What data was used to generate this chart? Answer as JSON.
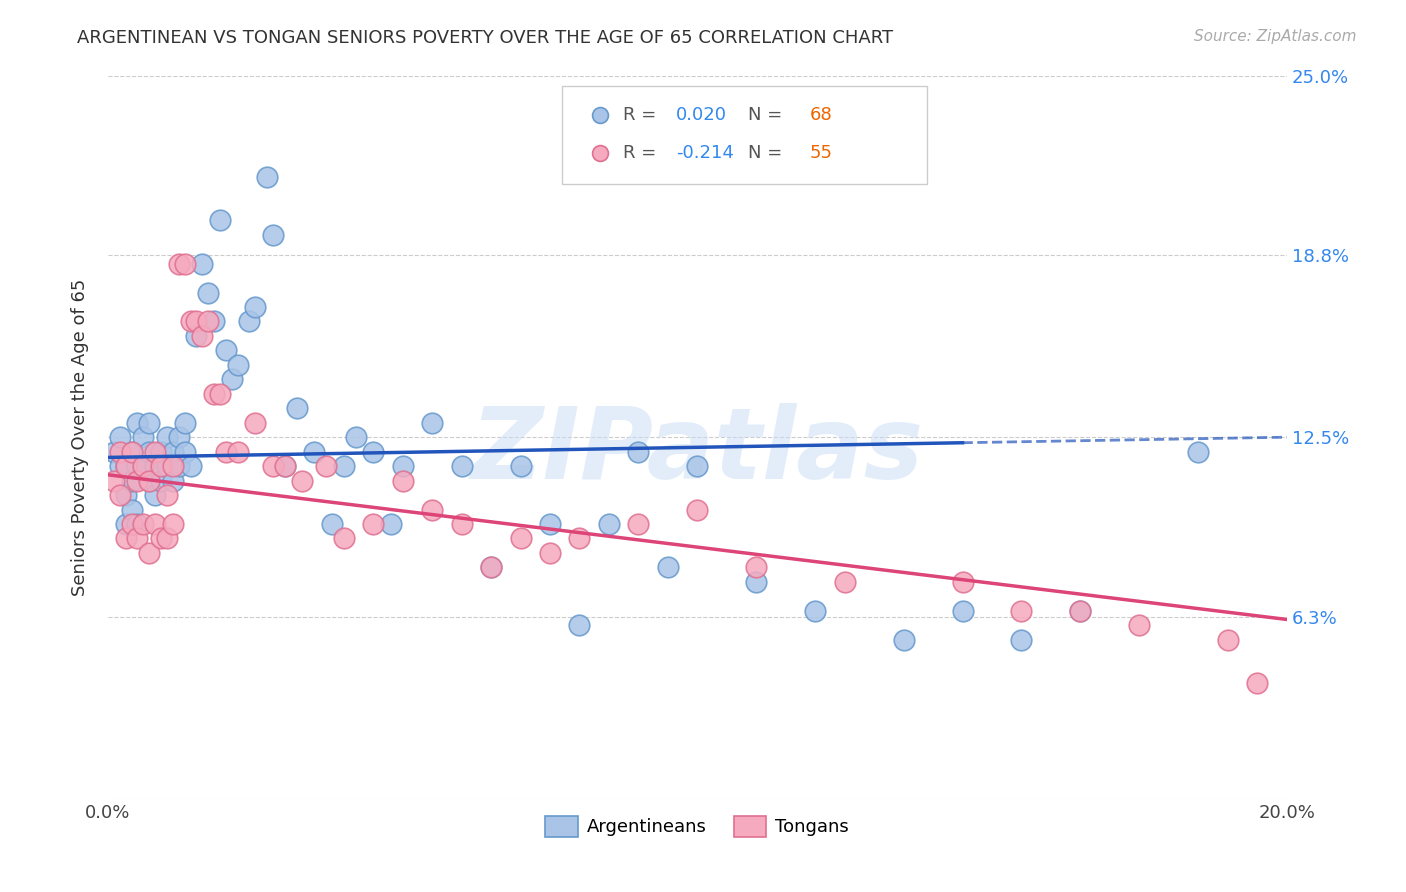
{
  "title": "ARGENTINEAN VS TONGAN SENIORS POVERTY OVER THE AGE OF 65 CORRELATION CHART",
  "source": "Source: ZipAtlas.com",
  "ylabel": "Seniors Poverty Over the Age of 65",
  "x_min": 0.0,
  "x_max": 0.2,
  "y_min": 0.0,
  "y_max": 0.25,
  "x_ticks": [
    0.0,
    0.05,
    0.1,
    0.15,
    0.2
  ],
  "x_tick_labels": [
    "0.0%",
    "",
    "",
    "",
    "20.0%"
  ],
  "y_ticks": [
    0.0,
    0.063,
    0.125,
    0.188,
    0.25
  ],
  "y_tick_labels_right": [
    "",
    "6.3%",
    "12.5%",
    "18.8%",
    "25.0%"
  ],
  "argentinean_color": "#aac4e8",
  "tongan_color": "#f5aabf",
  "argentinean_edge": "#6699cc",
  "tongan_edge": "#e07090",
  "blue_line_color": "#2255bb",
  "pink_line_color": "#dd4477",
  "watermark": "ZIPatlas",
  "argentinean_x": [
    0.001,
    0.002,
    0.002,
    0.003,
    0.003,
    0.003,
    0.004,
    0.004,
    0.004,
    0.005,
    0.005,
    0.005,
    0.006,
    0.006,
    0.007,
    0.007,
    0.007,
    0.008,
    0.008,
    0.009,
    0.009,
    0.01,
    0.01,
    0.011,
    0.011,
    0.012,
    0.012,
    0.013,
    0.013,
    0.014,
    0.015,
    0.016,
    0.017,
    0.018,
    0.019,
    0.02,
    0.021,
    0.022,
    0.024,
    0.025,
    0.027,
    0.028,
    0.03,
    0.032,
    0.035,
    0.038,
    0.04,
    0.042,
    0.045,
    0.048,
    0.05,
    0.055,
    0.06,
    0.065,
    0.07,
    0.075,
    0.08,
    0.085,
    0.09,
    0.095,
    0.1,
    0.11,
    0.12,
    0.135,
    0.145,
    0.155,
    0.165,
    0.185
  ],
  "argentinean_y": [
    0.12,
    0.115,
    0.125,
    0.115,
    0.105,
    0.095,
    0.12,
    0.11,
    0.1,
    0.13,
    0.115,
    0.095,
    0.125,
    0.115,
    0.12,
    0.13,
    0.11,
    0.115,
    0.105,
    0.12,
    0.11,
    0.115,
    0.125,
    0.12,
    0.11,
    0.125,
    0.115,
    0.13,
    0.12,
    0.115,
    0.16,
    0.185,
    0.175,
    0.165,
    0.2,
    0.155,
    0.145,
    0.15,
    0.165,
    0.17,
    0.215,
    0.195,
    0.115,
    0.135,
    0.12,
    0.095,
    0.115,
    0.125,
    0.12,
    0.095,
    0.115,
    0.13,
    0.115,
    0.08,
    0.115,
    0.095,
    0.06,
    0.095,
    0.12,
    0.08,
    0.115,
    0.075,
    0.065,
    0.055,
    0.065,
    0.055,
    0.065,
    0.12
  ],
  "tongan_x": [
    0.001,
    0.002,
    0.002,
    0.003,
    0.003,
    0.004,
    0.004,
    0.005,
    0.005,
    0.006,
    0.006,
    0.007,
    0.007,
    0.008,
    0.008,
    0.009,
    0.009,
    0.01,
    0.01,
    0.011,
    0.011,
    0.012,
    0.013,
    0.014,
    0.015,
    0.016,
    0.017,
    0.018,
    0.019,
    0.02,
    0.022,
    0.025,
    0.028,
    0.03,
    0.033,
    0.037,
    0.04,
    0.045,
    0.05,
    0.055,
    0.06,
    0.065,
    0.07,
    0.075,
    0.08,
    0.09,
    0.1,
    0.11,
    0.125,
    0.145,
    0.155,
    0.165,
    0.175,
    0.19,
    0.195
  ],
  "tongan_y": [
    0.11,
    0.12,
    0.105,
    0.115,
    0.09,
    0.12,
    0.095,
    0.11,
    0.09,
    0.115,
    0.095,
    0.11,
    0.085,
    0.12,
    0.095,
    0.115,
    0.09,
    0.105,
    0.09,
    0.115,
    0.095,
    0.185,
    0.185,
    0.165,
    0.165,
    0.16,
    0.165,
    0.14,
    0.14,
    0.12,
    0.12,
    0.13,
    0.115,
    0.115,
    0.11,
    0.115,
    0.09,
    0.095,
    0.11,
    0.1,
    0.095,
    0.08,
    0.09,
    0.085,
    0.09,
    0.095,
    0.1,
    0.08,
    0.075,
    0.075,
    0.065,
    0.065,
    0.06,
    0.055,
    0.04
  ],
  "blue_line_y_at_0": 0.118,
  "blue_line_y_at_020": 0.125,
  "blue_line_solid_end": 0.145,
  "pink_line_y_at_0": 0.112,
  "pink_line_y_at_020": 0.062
}
